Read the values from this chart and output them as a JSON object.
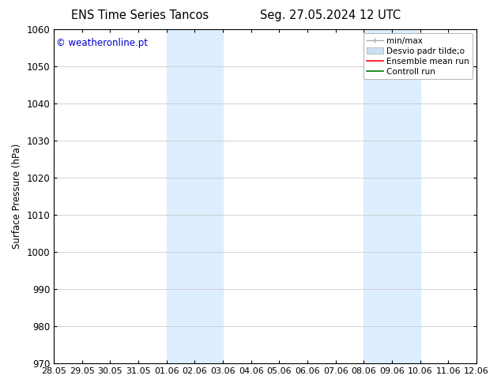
{
  "title_left": "ENS Time Series Tancos",
  "title_right": "Seg. 27.05.2024 12 UTC",
  "ylabel": "Surface Pressure (hPa)",
  "ylim": [
    970,
    1060
  ],
  "yticks": [
    970,
    980,
    990,
    1000,
    1010,
    1020,
    1030,
    1040,
    1050,
    1060
  ],
  "xtick_labels": [
    "28.05",
    "29.05",
    "30.05",
    "31.05",
    "01.06",
    "02.06",
    "03.06",
    "04.06",
    "05.06",
    "06.06",
    "07.06",
    "08.06",
    "09.06",
    "10.06",
    "11.06",
    "12.06"
  ],
  "watermark": "© weatheronline.pt",
  "watermark_color": "#0000cc",
  "background_color": "#ffffff",
  "plot_bg_color": "#ffffff",
  "shaded_regions": [
    {
      "xstart": 4,
      "xend": 5,
      "color": "#ddeeff"
    },
    {
      "xstart": 5,
      "xend": 6,
      "color": "#ddeeff"
    },
    {
      "xstart": 11,
      "xend": 12,
      "color": "#ddeeff"
    },
    {
      "xstart": 12,
      "xend": 13,
      "color": "#ddeeff"
    }
  ],
  "legend_entries": [
    {
      "label": "min/max",
      "color": "#aaaaaa",
      "lw": 1.0,
      "style": "errorbar"
    },
    {
      "label": "Desvio padr tilde;o",
      "color": "#cce0f0",
      "lw": 6,
      "style": "band"
    },
    {
      "label": "Ensemble mean run",
      "color": "#ff0000",
      "lw": 1.2,
      "style": "line"
    },
    {
      "label": "Controll run",
      "color": "#007700",
      "lw": 1.2,
      "style": "line"
    }
  ],
  "grid_color": "#cccccc",
  "font_size": 8.5,
  "title_font_size": 10.5,
  "legend_font_size": 7.5
}
